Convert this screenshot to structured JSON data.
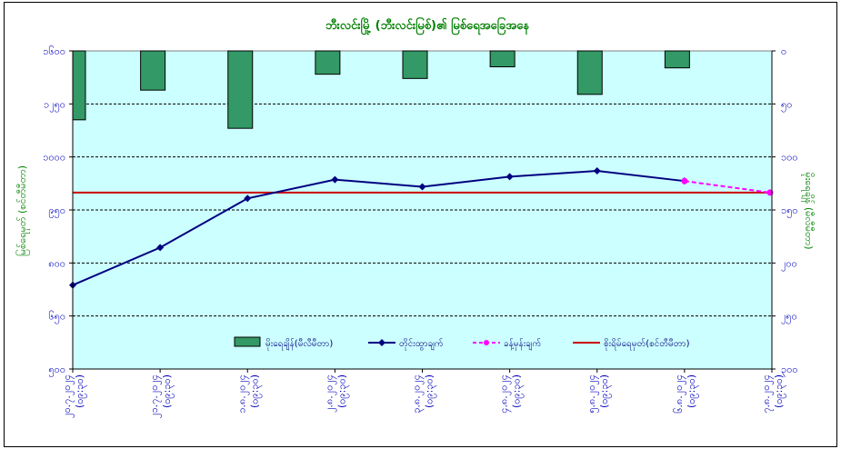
{
  "chart_data": {
    "type": "bar+line",
    "title": "ဘီးလင်းမြို့ (ဘီးလင်းမြစ်)၏ မြစ်ရေအခြေအနေ",
    "ylabel_left": "မြစ်ရေမှတ် (စင်တီမီတာ)",
    "ylabel_right": "မိုးရေချိန် (မီလီမီတာ)",
    "left_axis": {
      "min": 500,
      "max": 1600,
      "ticks": [
        "၅၀၀",
        "၆၅၀",
        "၈၀၀",
        "၉၅၀",
        "၁၀၀၀",
        "၁၂၅၀",
        "၁၆၀၀"
      ]
    },
    "right_axis": {
      "min": 0,
      "max": 300,
      "ticks": [
        "၀",
        "၅၀",
        "၁၀၀",
        "၁၅၀",
        "၂၀၀",
        "၂၅၀",
        "၃၀၀"
      ]
    },
    "categories": [
      "၂၀.၇.၂၀၂၄ (၀၉:၃၀)",
      "၂၁.၇.၂၀၂၄ (၀၉:၃၀)",
      "၁.၈.၂၀၂၄ (၀၉:၃၀)",
      "၂.၈.၂၀၂၄ (၀၉:၃၀)",
      "၃.၈.၂၀၂၄ (၀၉:၃၀)",
      "၄.၈.၂၀၂၄ (၀၉:၃၀)",
      "၅.၈.၂၀၂၄ (၀၉:၃၀)",
      "၆.၈.၂၀၂၄ (၀၉:၃၀)",
      "၇.၈.၂၀၂၄ (၀၉:၃၀)"
    ],
    "series": [
      {
        "name": "မိုးရေချိန်(မီလီမီတာ)",
        "kind": "bar",
        "axis": "right",
        "color": "#339966",
        "values": [
          65,
          37,
          73,
          22,
          26,
          15,
          41,
          16,
          null
        ]
      },
      {
        "name": "တိုင်းထွာချက်",
        "kind": "line",
        "axis": "left",
        "color": "#000080",
        "values": [
          790,
          920,
          1090,
          1155,
          1130,
          1165,
          1185,
          1150,
          null
        ]
      },
      {
        "name": "ခန့်မှန်းချက်",
        "kind": "dashed",
        "axis": "left",
        "color": "#ff00ff",
        "values": [
          null,
          null,
          null,
          null,
          null,
          null,
          null,
          1150,
          1110
        ]
      },
      {
        "name": "စိုးရိမ်ရေမှတ်(စင်တီမီတာ)",
        "kind": "hline",
        "axis": "left",
        "color": "#cc0000",
        "value": 1110
      }
    ],
    "grid": true,
    "legend": "bottom-center"
  }
}
